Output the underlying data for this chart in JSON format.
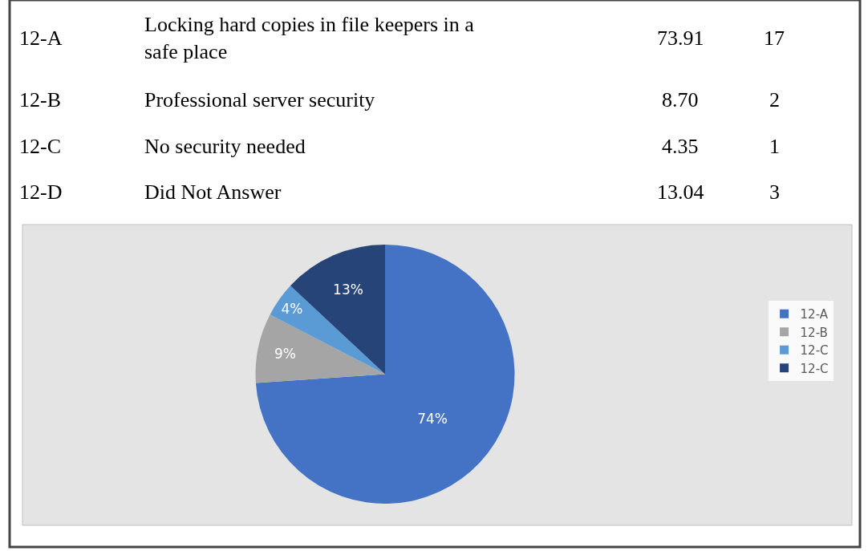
{
  "chart_data": {
    "type": "pie",
    "categories": [
      "12-A",
      "12-B",
      "12-C",
      "12-C"
    ],
    "values": [
      73.91,
      8.7,
      4.35,
      13.04
    ],
    "value_labels": [
      "74%",
      "9%",
      "4%",
      "13%"
    ],
    "colors": [
      "#4472c4",
      "#a5a5a5",
      "#5b9bd5",
      "#264478"
    ],
    "legend": "right",
    "annotations": [
      "12-A",
      "Locking hard copies in file keepers in a\nsafe place",
      "73.91",
      "17",
      "12-B",
      "Professional server security",
      "8.70",
      "2",
      "12-C",
      "No security needed",
      "4.35",
      "1",
      "12-D",
      "Did Not Answer",
      "13.04",
      "3"
    ]
  }
}
